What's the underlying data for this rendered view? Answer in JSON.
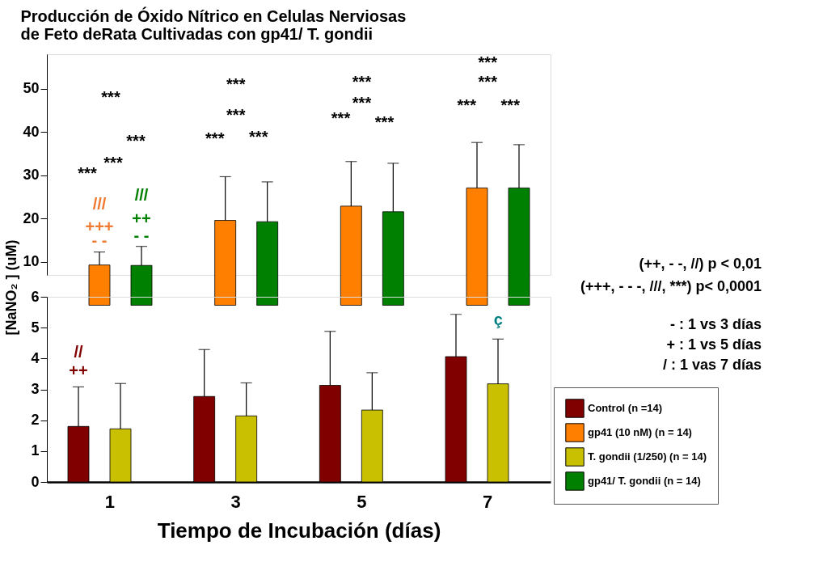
{
  "chart_data": [
    {
      "type": "bar",
      "title": [
        "Producción de Óxido Nítrico en Celulas Nerviosas",
        "de Feto deRata Cultivadas con gp41/ T. gondii"
      ],
      "categories": [
        "1",
        "3",
        "5",
        "7"
      ],
      "ylim": [
        7,
        58
      ],
      "yticks": [
        10,
        20,
        30,
        40,
        50
      ],
      "tick_labels": "y",
      "grid": false,
      "legend": false,
      "series": [
        {
          "color": "#800000",
          "values": [
            null,
            null,
            null,
            null
          ]
        },
        {
          "color": "#ff8000",
          "values": [
            9.3,
            19.6,
            22.9,
            27.1
          ],
          "errors": [
            [
              9.3,
              12.3
            ],
            [
              19.6,
              29.7
            ],
            [
              22.9,
              33.2
            ],
            [
              27.1,
              37.6
            ]
          ]
        },
        {
          "color": "#c8c000",
          "values": [
            null,
            null,
            null,
            null
          ]
        },
        {
          "color": "#008000",
          "values": [
            9.2,
            19.3,
            21.6,
            27.1
          ],
          "errors": [
            [
              9.2,
              13.6
            ],
            [
              19.3,
              28.5
            ],
            [
              21.6,
              32.8
            ],
            [
              27.1,
              37.1
            ]
          ]
        }
      ],
      "annotations": [
        "***",
        "***",
        "***",
        "***",
        "///",
        "+++",
        "- -",
        "///",
        "++",
        "- -",
        "***",
        "***",
        "***",
        "***",
        "***",
        "***",
        "***",
        "***",
        "***",
        "***",
        "***",
        "***"
      ]
    },
    {
      "type": "bar",
      "categories": [
        "1",
        "3",
        "5",
        "7"
      ],
      "ylim": [
        0,
        6
      ],
      "yticks": [
        0,
        1,
        2,
        3,
        4,
        5,
        6
      ],
      "grid": false,
      "legend": "bottom right",
      "xlabel": "Tiempo de Incubación (días)",
      "ylabel": "[NaNO₂ ]  (uM)",
      "series": [
        {
          "name": "Control (n =14)",
          "color": "#800000",
          "values": [
            1.8,
            2.77,
            3.13,
            4.06
          ],
          "errors": [
            [
              1.8,
              3.08
            ],
            [
              2.77,
              4.29
            ],
            [
              3.13,
              4.88
            ],
            [
              4.06,
              5.43
            ]
          ]
        },
        {
          "name": "gp41 (10 nM) (n = 14)",
          "color": "#ff8000",
          "values": [
            null,
            null,
            null,
            null
          ]
        },
        {
          "name": "T. gondii (1/250) (n = 14)",
          "color": "#c8c000",
          "values": [
            1.72,
            2.14,
            2.33,
            3.18
          ],
          "errors": [
            [
              1.72,
              3.19
            ],
            [
              2.14,
              3.21
            ],
            [
              2.33,
              3.54
            ],
            [
              3.18,
              4.63
            ]
          ]
        },
        {
          "name": "gp41/ T. gondii (n = 14)",
          "color": "#008000",
          "values": [
            null,
            null,
            null,
            null
          ]
        }
      ],
      "annotations": [
        "//",
        "++",
        "ç",
        "(++, - -, //) p < 0,01",
        "(+++, - - -, ///, ***) p< 0,0001",
        "- : 1 vs 3 días",
        "+ : 1 vs 5 días",
        "/ : 1 vas 7 días"
      ]
    }
  ]
}
